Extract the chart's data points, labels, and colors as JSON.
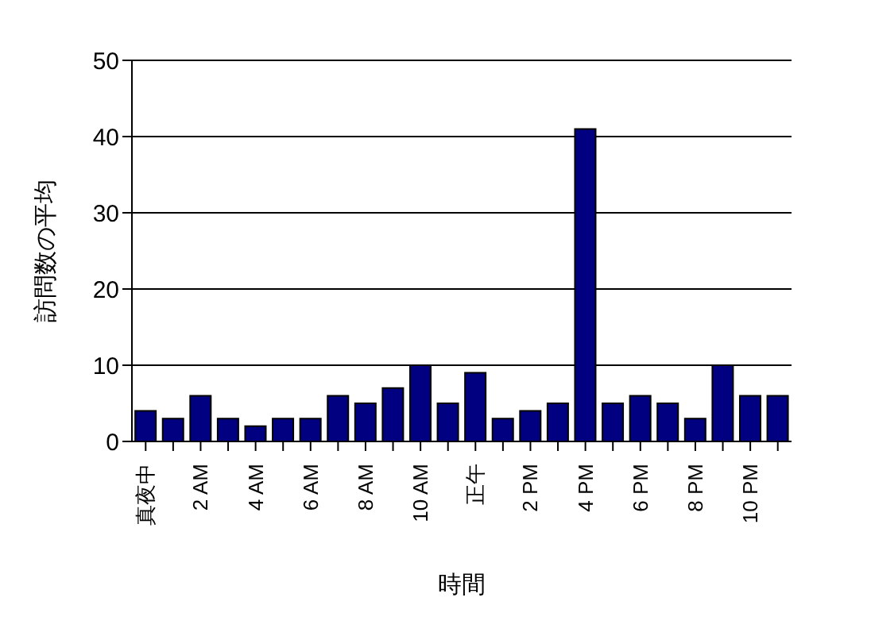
{
  "chart_data": {
    "type": "bar",
    "xlabel": "時間",
    "ylabel": "訪問数の平均",
    "categories": [
      "真夜中",
      null,
      "2 AM",
      null,
      "4 AM",
      null,
      "6 AM",
      null,
      "8 AM",
      null,
      "10 AM",
      null,
      "正午",
      null,
      "2 PM",
      null,
      "4 PM",
      null,
      "6 PM",
      null,
      "8 PM",
      null,
      "10 PM",
      null
    ],
    "values": [
      4,
      3,
      6,
      3,
      2,
      3,
      3,
      6,
      5,
      7,
      10,
      5,
      9,
      3,
      4,
      5,
      41,
      5,
      6,
      5,
      3,
      10,
      6,
      6
    ],
    "color": "#000080",
    "ylim": [
      0,
      50
    ],
    "yticks": [
      0,
      10,
      20,
      30,
      40,
      50
    ],
    "grid": "y"
  }
}
